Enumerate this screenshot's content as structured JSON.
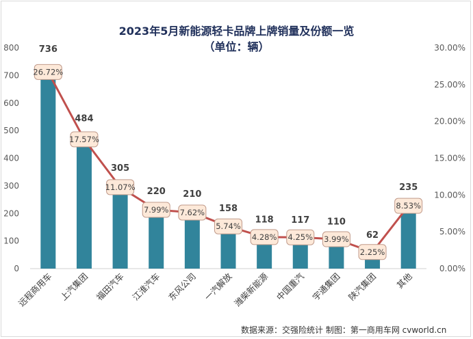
{
  "chart_data": {
    "type": "bar",
    "title": "2023年5月新能源轻卡品牌上牌销量及份额一览",
    "subtitle": "（单位：辆）",
    "categories": [
      "远程商用车",
      "上汽集团",
      "福田汽车",
      "江淮汽车",
      "东风公司",
      "一汽解放",
      "潍柴新能源",
      "中国重汽",
      "宇通集团",
      "陕汽集团",
      "其他"
    ],
    "series": [
      {
        "type": "bar",
        "values": [
          736,
          484,
          305,
          220,
          210,
          158,
          118,
          117,
          110,
          62,
          235
        ],
        "labels": [
          "736",
          "484",
          "305",
          "220",
          "210",
          "158",
          "118",
          "117",
          "110",
          "62",
          "235"
        ]
      },
      {
        "type": "line",
        "axis": "right",
        "values": [
          26.72,
          17.57,
          11.07,
          7.99,
          7.62,
          5.74,
          4.28,
          4.25,
          3.99,
          2.25,
          8.53
        ],
        "labels": [
          "26.72%",
          "17.57%",
          "11.07%",
          "7.99%",
          "7.62%",
          "5.74%",
          "4.28%",
          "4.25%",
          "3.99%",
          "2.25%",
          "8.53%"
        ]
      }
    ],
    "ylim": [
      0,
      800
    ],
    "yticks": [
      "0",
      "100",
      "200",
      "300",
      "400",
      "500",
      "600",
      "700",
      "800"
    ],
    "y2lim": [
      0,
      30
    ],
    "y2ticks": [
      "0.00%",
      "5.00%",
      "10.00%",
      "15.00%",
      "20.00%",
      "25.00%",
      "30.00%"
    ],
    "grid": false,
    "legend": "none",
    "colors": {
      "bar": "#31849b",
      "line": "#c0504d",
      "label_bg": "#fde9d9",
      "label_border": "#c09a8a"
    }
  },
  "footer": {
    "source": "数据来源：交强险统计  制图：第一商用车网 cvworld.cn"
  }
}
